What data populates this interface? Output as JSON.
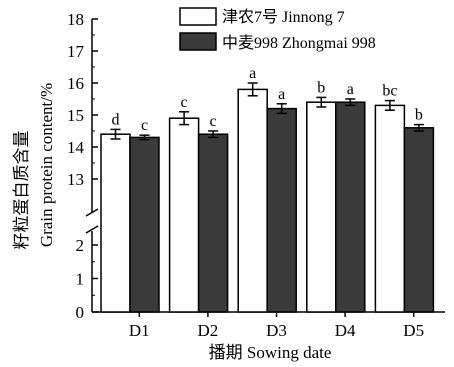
{
  "chart_data": {
    "type": "bar",
    "xlabel": "播期 Sowing date",
    "ylabel_cn": "籽粒蛋白质含量",
    "ylabel_en": "Grain protein content/%",
    "categories": [
      "D1",
      "D2",
      "D3",
      "D4",
      "D5"
    ],
    "y_axis_break": true,
    "y_lower_range": [
      0,
      2
    ],
    "y_upper_range": [
      13,
      18
    ],
    "y_ticks_lower": [
      0,
      1,
      2
    ],
    "y_ticks_upper": [
      13,
      14,
      15,
      16,
      17,
      18
    ],
    "grid": false,
    "legend_position": "top-right",
    "series": [
      {
        "name": "津农7号 Jinnong 7",
        "color": "#ffffff",
        "values": [
          14.4,
          14.9,
          15.8,
          15.4,
          15.3
        ],
        "errors": [
          0.15,
          0.2,
          0.2,
          0.15,
          0.15
        ],
        "significance": [
          "d",
          "c",
          "a",
          "b",
          "bc"
        ]
      },
      {
        "name": "中麦998 Zhongmai 998",
        "color": "#3a3a3a",
        "values": [
          14.3,
          14.4,
          15.2,
          15.4,
          14.6
        ],
        "errors": [
          0.07,
          0.1,
          0.15,
          0.1,
          0.1
        ],
        "significance": [
          "c",
          "c",
          "a",
          "a",
          "b"
        ]
      }
    ]
  }
}
